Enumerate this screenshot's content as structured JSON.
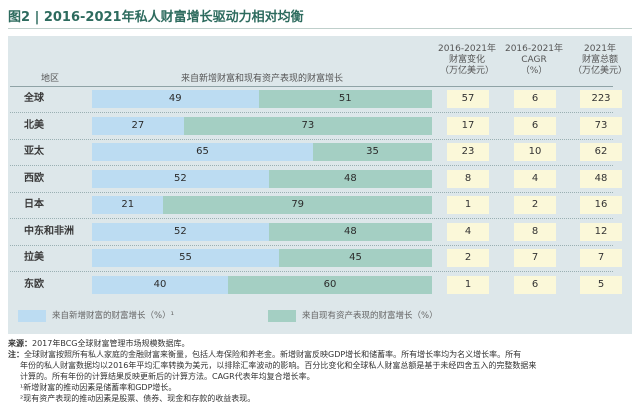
{
  "figure": {
    "title": "图2 | 2016-2021年私人财富增长驱动力相对均衡"
  },
  "colors": {
    "new_wealth": "#bcdcf2",
    "existing_assets": "#a4cfc3",
    "value_box": "#fbf8d9",
    "panel": "#dde7ea",
    "title": "#2d6b5e"
  },
  "headers": {
    "region": "地区",
    "growth": "来自新增财富和现有资产表现的财富增长",
    "change_line1": "2016-2021年",
    "change_line2": "财富变化",
    "change_line3": "（万亿美元）",
    "cagr_line1": "2016-2021年",
    "cagr_line2": "CAGR",
    "cagr_line3": "（%）",
    "total_line1": "2021年",
    "total_line2": "财富总额",
    "total_line3": "（万亿美元）"
  },
  "chart_data": {
    "type": "bar",
    "stacked": true,
    "orientation": "horizontal",
    "percent_stacked": true,
    "categories": [
      "全球",
      "北美",
      "亚太",
      "西欧",
      "日本",
      "中东和非洲",
      "拉美",
      "东欧"
    ],
    "series": [
      {
        "name": "来自新增财富的财富增长（%）",
        "values": [
          49,
          27,
          65,
          52,
          21,
          52,
          55,
          40
        ]
      },
      {
        "name": "来自现有资产表现的财富增长（%）",
        "values": [
          51,
          73,
          35,
          48,
          79,
          48,
          45,
          60
        ]
      }
    ],
    "columns": {
      "wealth_change": [
        57,
        17,
        23,
        8,
        1,
        4,
        2,
        1
      ],
      "cagr": [
        6,
        6,
        10,
        4,
        2,
        8,
        7,
        6
      ],
      "total_wealth": [
        223,
        73,
        62,
        48,
        16,
        12,
        7,
        5
      ]
    },
    "legend": {
      "new_wealth": "来自新增财富的财富增长（%）",
      "existing_assets": "来自现有资产表现的财富增长（%）",
      "note_mark": "¹",
      "placement": "bottom"
    }
  },
  "notes": {
    "source_label": "来源：",
    "source_text": "2017年BCG全球财富管理市场规模数据库。",
    "note_label": "注：",
    "note_line1": "全球财富按照所有私人家庭的金融财富来衡量，包括人寿保险和养老金。新增财富反映GDP增长和储蓄率。所有增长率均为名义增长率。所有",
    "note_line2": "年份的私人财富数据均以2016年平均汇率转换为美元，以排除汇率波动的影响。百分比变化和全球私人财富总额是基于未经四舍五入的完整数据来",
    "note_line3": "计算的。所有年份的计算结果反映更新后的计算方法。CAGR代表年均复合增长率。",
    "footnote1": "¹新增财富的推动因素是储蓄率和GDP增长。",
    "footnote2": "²现有资产表现的推动因素是股票、债券、现金和存款的收益表现。"
  }
}
